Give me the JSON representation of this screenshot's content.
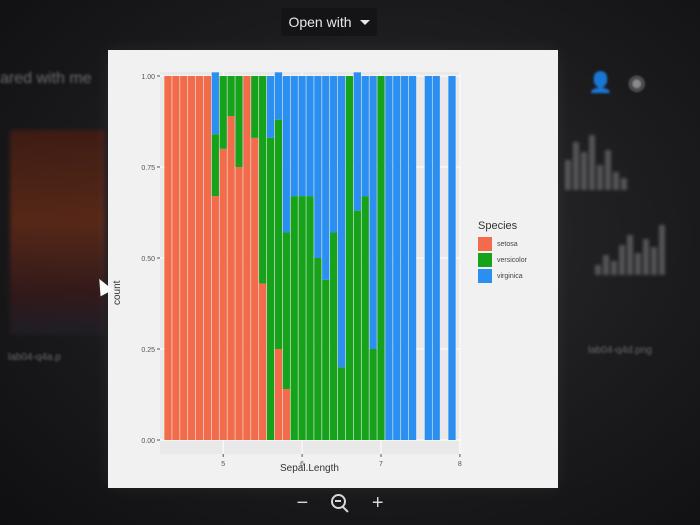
{
  "viewer": {
    "open_with_label": "Open with",
    "zoom_out_label": "−",
    "zoom_in_label": "+"
  },
  "background": {
    "shared_text": "ared with me",
    "file_left": "lab04-q4a.p",
    "file_right": "lab04-q4d.png"
  },
  "colors": {
    "setosa": "#F26B4B",
    "versicolor": "#16A31B",
    "virginica": "#2B8EF1",
    "panel_bg": "#E9E9E9",
    "gridline": "#FFFFFF"
  },
  "chart_data": {
    "type": "bar",
    "position": "fill",
    "xlabel": "Sepal.Length",
    "ylabel": "count",
    "legend_title": "Species",
    "legend_placement": "right",
    "x_ticks": [
      "5",
      "6",
      "7",
      "8"
    ],
    "y_ticks": [
      "0.00",
      "0.25",
      "0.50",
      "0.75",
      "1.00"
    ],
    "xlim": [
      4.3,
      7.9
    ],
    "ylim": [
      0,
      1
    ],
    "x": [
      4.3,
      4.4,
      4.5,
      4.6,
      4.7,
      4.8,
      4.9,
      5.0,
      5.1,
      5.2,
      5.3,
      5.4,
      5.5,
      5.6,
      5.7,
      5.8,
      5.9,
      6.0,
      6.1,
      6.2,
      6.3,
      6.4,
      6.5,
      6.6,
      6.7,
      6.8,
      6.9,
      7.0,
      7.1,
      7.2,
      7.3,
      7.4,
      7.6,
      7.7,
      7.9
    ],
    "series": [
      {
        "name": "setosa",
        "values": [
          1,
          1,
          1,
          1,
          1,
          1,
          0.67,
          0.8,
          0.89,
          0.75,
          1,
          0.83,
          0.43,
          0,
          0.25,
          0.14,
          0,
          0,
          0,
          0,
          0,
          0,
          0,
          0,
          0,
          0,
          0,
          0,
          0,
          0,
          0,
          0,
          0,
          0,
          0
        ]
      },
      {
        "name": "versicolor",
        "values": [
          0,
          0,
          0,
          0,
          0,
          0,
          0.17,
          0.2,
          0.11,
          0.25,
          0,
          0.17,
          0.57,
          0.83,
          0.63,
          0.43,
          0.67,
          0.67,
          0.67,
          0.5,
          0.44,
          0.57,
          0.2,
          1,
          0.63,
          0.67,
          0.25,
          1,
          0,
          0,
          0,
          0,
          0,
          0,
          0
        ]
      },
      {
        "name": "virginica",
        "values": [
          0,
          0,
          0,
          0,
          0,
          0,
          0.17,
          0,
          0,
          0,
          0,
          0,
          0,
          0.17,
          0.13,
          0.43,
          0.33,
          0.33,
          0.33,
          0.5,
          0.56,
          0.43,
          0.8,
          0,
          0.38,
          0.33,
          0.75,
          0,
          1,
          1,
          1,
          1,
          1,
          1,
          1
        ]
      }
    ]
  }
}
